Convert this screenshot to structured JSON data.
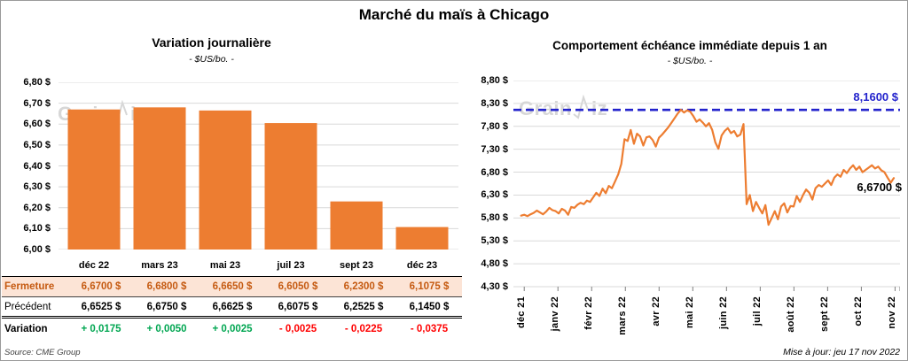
{
  "header": {
    "title": "Marché du maïs à Chicago"
  },
  "watermark": {
    "part1": "Grain",
    "part2": "iz"
  },
  "colors": {
    "series_orange": "#ED7D31",
    "max_line_blue": "#2222CC",
    "positive_green": "#00A651",
    "negative_red": "#FF0000",
    "fermeture_bg": "#FCE4D6",
    "fermeture_text": "#C55A11",
    "gridline": "#D9D9D9"
  },
  "chart_data": [
    {
      "type": "bar",
      "title": "Variation journalière",
      "subtitle": "- $US/bo. -",
      "categories": [
        "déc 22",
        "mars 23",
        "mai 23",
        "juil 23",
        "sept 23",
        "déc 23"
      ],
      "values": [
        6.67,
        6.68,
        6.665,
        6.605,
        6.23,
        6.1075
      ],
      "ylim": [
        6.0,
        6.8
      ],
      "ytick_labels": [
        "6,80 $",
        "6,70 $",
        "6,60 $",
        "6,50 $",
        "6,40 $",
        "6,30 $",
        "6,20 $",
        "6,10 $",
        "6,00 $"
      ],
      "bar_color": "#ED7D31",
      "grid": true
    },
    {
      "type": "line",
      "title": "Comportement échéance immédiate depuis 1 an",
      "subtitle": "- $US/bo. -",
      "x_labels": [
        "déc 21",
        "janv 22",
        "févr 22",
        "mars 22",
        "avr 22",
        "mai 22",
        "juin 22",
        "juil 22",
        "août 22",
        "sept 22",
        "oct 22",
        "nov 22"
      ],
      "ylim": [
        4.3,
        8.8
      ],
      "ytick_labels": [
        "8,80 $",
        "8,30 $",
        "7,80 $",
        "7,30 $",
        "6,80 $",
        "6,30 $",
        "5,80 $",
        "5,30 $",
        "4,80 $",
        "4,30 $"
      ],
      "line_color": "#ED7D31",
      "grid": true,
      "max_line": {
        "value": 8.16,
        "label": "8,1600 $",
        "color": "#2222CC"
      },
      "last_value": 6.67,
      "last_label": "6,6700 $",
      "values": [
        5.85,
        5.87,
        5.84,
        5.88,
        5.91,
        5.96,
        5.92,
        5.88,
        5.94,
        6.02,
        5.97,
        5.95,
        5.9,
        6.0,
        5.96,
        5.87,
        6.04,
        6.02,
        6.09,
        6.13,
        6.1,
        6.18,
        6.15,
        6.25,
        6.35,
        6.28,
        6.44,
        6.34,
        6.5,
        6.45,
        6.6,
        6.75,
        6.98,
        7.52,
        7.48,
        7.72,
        7.42,
        7.64,
        7.58,
        7.38,
        7.56,
        7.58,
        7.5,
        7.36,
        7.55,
        7.62,
        7.7,
        7.78,
        7.88,
        7.98,
        8.08,
        8.16,
        8.1,
        8.15,
        8.12,
        8.02,
        7.9,
        7.95,
        7.88,
        7.8,
        7.87,
        7.72,
        7.45,
        7.31,
        7.6,
        7.7,
        7.76,
        7.65,
        7.7,
        7.58,
        7.62,
        7.85,
        6.1,
        6.3,
        5.95,
        6.15,
        6.02,
        5.9,
        6.08,
        5.65,
        5.8,
        5.95,
        5.77,
        6.05,
        6.12,
        5.92,
        6.06,
        6.05,
        6.28,
        6.15,
        6.3,
        6.42,
        6.35,
        6.2,
        6.45,
        6.52,
        6.48,
        6.55,
        6.62,
        6.52,
        6.68,
        6.75,
        6.7,
        6.85,
        6.78,
        6.88,
        6.95,
        6.85,
        6.92,
        6.8,
        6.85,
        6.9,
        6.95,
        6.88,
        6.92,
        6.84,
        6.8,
        6.68,
        6.57,
        6.67
      ]
    }
  ],
  "table": {
    "rows": [
      {
        "name": "fermeture",
        "label": "Fermeture",
        "values": [
          "6,6700 $",
          "6,6800 $",
          "6,6650 $",
          "6,6050 $",
          "6,2300 $",
          "6,1075 $"
        ]
      },
      {
        "name": "precedent",
        "label": "Précédent",
        "values": [
          "6,6525 $",
          "6,6750 $",
          "6,6625 $",
          "6,6075 $",
          "6,2525 $",
          "6,1450 $"
        ]
      },
      {
        "name": "variation",
        "label": "Variation",
        "values": [
          "+ 0,0175",
          "+ 0,0050",
          "+ 0,0025",
          "- 0,0025",
          "- 0,0225",
          "- 0,0375"
        ]
      }
    ]
  },
  "footer": {
    "source": "Source: CME Group",
    "updated": "Mise à jour: jeu 17 nov 2022"
  }
}
